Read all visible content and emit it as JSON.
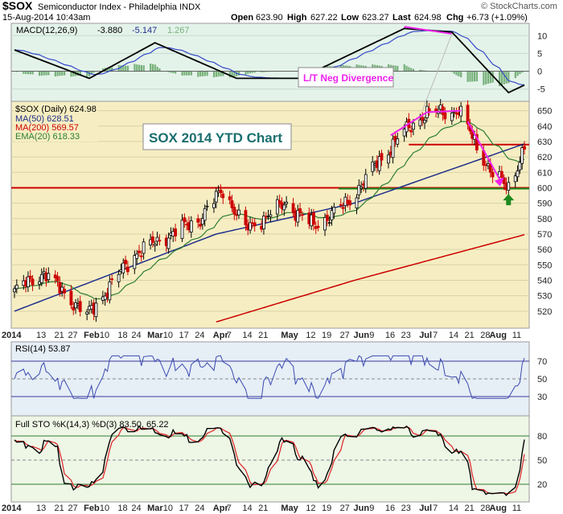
{
  "header": {
    "symbol": "$SOX",
    "name": "Semiconductor Index - Philadelphia INDX",
    "date": "15-Aug-2014 10:43am",
    "open_label": "Open",
    "open": "623.90",
    "high_label": "High",
    "high": "627.22",
    "low_label": "Low",
    "low": "623.27",
    "last_label": "Last",
    "last": "624.98",
    "chg_label": "Chg",
    "chg": "+6.73 (+1.09%)",
    "watermark": "© StockCharts.com"
  },
  "macd": {
    "label": "MACD(12,26,9)",
    "macd": "-3.880",
    "signal": "-5.147",
    "hist": "1.267",
    "ticks": [
      "10",
      "5",
      "0",
      "-5"
    ]
  },
  "price": {
    "label": "$SOX (Daily) 624.98",
    "ma50": "MA(50) 628.51",
    "ma200": "MA(200) 569.57",
    "ema20": "EMA(20) 618.33",
    "ticks": [
      "650",
      "640",
      "630",
      "620",
      "610",
      "600",
      "590",
      "580",
      "570",
      "560",
      "550",
      "540",
      "530",
      "520"
    ]
  },
  "annotations": {
    "title": "SOX 2014 YTD Chart",
    "divergence": "L/T Neg Divergence"
  },
  "rsi": {
    "label": "RSI(14) 53.87",
    "ticks": [
      "70",
      "50",
      "30"
    ]
  },
  "sto": {
    "label": "Full STO %K(14,3) %D(3) 83.50, 65.22",
    "ticks": [
      "80",
      "50",
      "20"
    ]
  },
  "x_axis": [
    "2014",
    "13",
    "21",
    "27",
    "Feb",
    "10",
    "18",
    "24",
    "Mar",
    "10",
    "17",
    "24",
    "Apr",
    "7",
    "14",
    "21",
    "May",
    "12",
    "19",
    "27",
    "Jun",
    "9",
    "16",
    "23",
    "Jul",
    "7",
    "14",
    "21",
    "28",
    "Aug",
    "11"
  ],
  "colors": {
    "price_up": "#000000",
    "price_down": "#cc0000",
    "ma50": "#1f2e8c",
    "ma200": "#cc0000",
    "ema20": "#2e7d32",
    "support_line": "#cc0000",
    "green_line": "#1a8a1a",
    "divergence": "#ee22ee",
    "title_text": "#1a6e6e",
    "macd_fill": "#77b07a"
  },
  "chart_data": {
    "type": "candlestick",
    "title": "SOX 2014 YTD Chart",
    "x_range": [
      "2014-01-02",
      "2014-08-15"
    ],
    "price_ylim": [
      510,
      655
    ],
    "key_points": [
      {
        "x": "2014-01-02",
        "close": 533
      },
      {
        "x": "2014-01-15",
        "close": 545
      },
      {
        "x": "2014-02-03",
        "close": 517
      },
      {
        "x": "2014-02-24",
        "close": 557
      },
      {
        "x": "2014-03-07",
        "close": 566
      },
      {
        "x": "2014-03-25",
        "close": 580
      },
      {
        "x": "2014-04-04",
        "close": 599
      },
      {
        "x": "2014-04-14",
        "close": 573
      },
      {
        "x": "2014-05-02",
        "close": 590
      },
      {
        "x": "2014-05-14",
        "close": 575
      },
      {
        "x": "2014-05-29",
        "close": 590
      },
      {
        "x": "2014-06-09",
        "close": 612
      },
      {
        "x": "2014-06-20",
        "close": 632
      },
      {
        "x": "2014-07-02",
        "close": 648
      },
      {
        "x": "2014-07-17",
        "close": 650
      },
      {
        "x": "2014-08-01",
        "close": 608
      },
      {
        "x": "2014-08-08",
        "close": 601
      },
      {
        "x": "2014-08-15",
        "close": 624.98
      }
    ],
    "ma50_points": [
      {
        "x": "2014-01-02",
        "v": 520
      },
      {
        "x": "2014-04-01",
        "v": 570
      },
      {
        "x": "2014-06-01",
        "v": 590
      },
      {
        "x": "2014-08-15",
        "v": 628.51
      }
    ],
    "ma200_points": [
      {
        "x": "2014-04-01",
        "v": 513
      },
      {
        "x": "2014-06-01",
        "v": 540
      },
      {
        "x": "2014-08-15",
        "v": 569.57
      }
    ],
    "support_level": 600,
    "resistance_level": 628,
    "macd_ylim": [
      -8,
      13
    ],
    "macd_points": [
      {
        "x": "2014-01-02",
        "v": 6
      },
      {
        "x": "2014-02-04",
        "v": -2
      },
      {
        "x": "2014-03-05",
        "v": 8
      },
      {
        "x": "2014-04-10",
        "v": -2
      },
      {
        "x": "2014-05-08",
        "v": -2
      },
      {
        "x": "2014-06-23",
        "v": 12
      },
      {
        "x": "2014-07-14",
        "v": 11
      },
      {
        "x": "2014-08-08",
        "v": -6
      },
      {
        "x": "2014-08-15",
        "v": -3.88
      }
    ],
    "rsi_ylim": [
      10,
      90
    ],
    "sto_ylim": [
      0,
      100
    ]
  }
}
